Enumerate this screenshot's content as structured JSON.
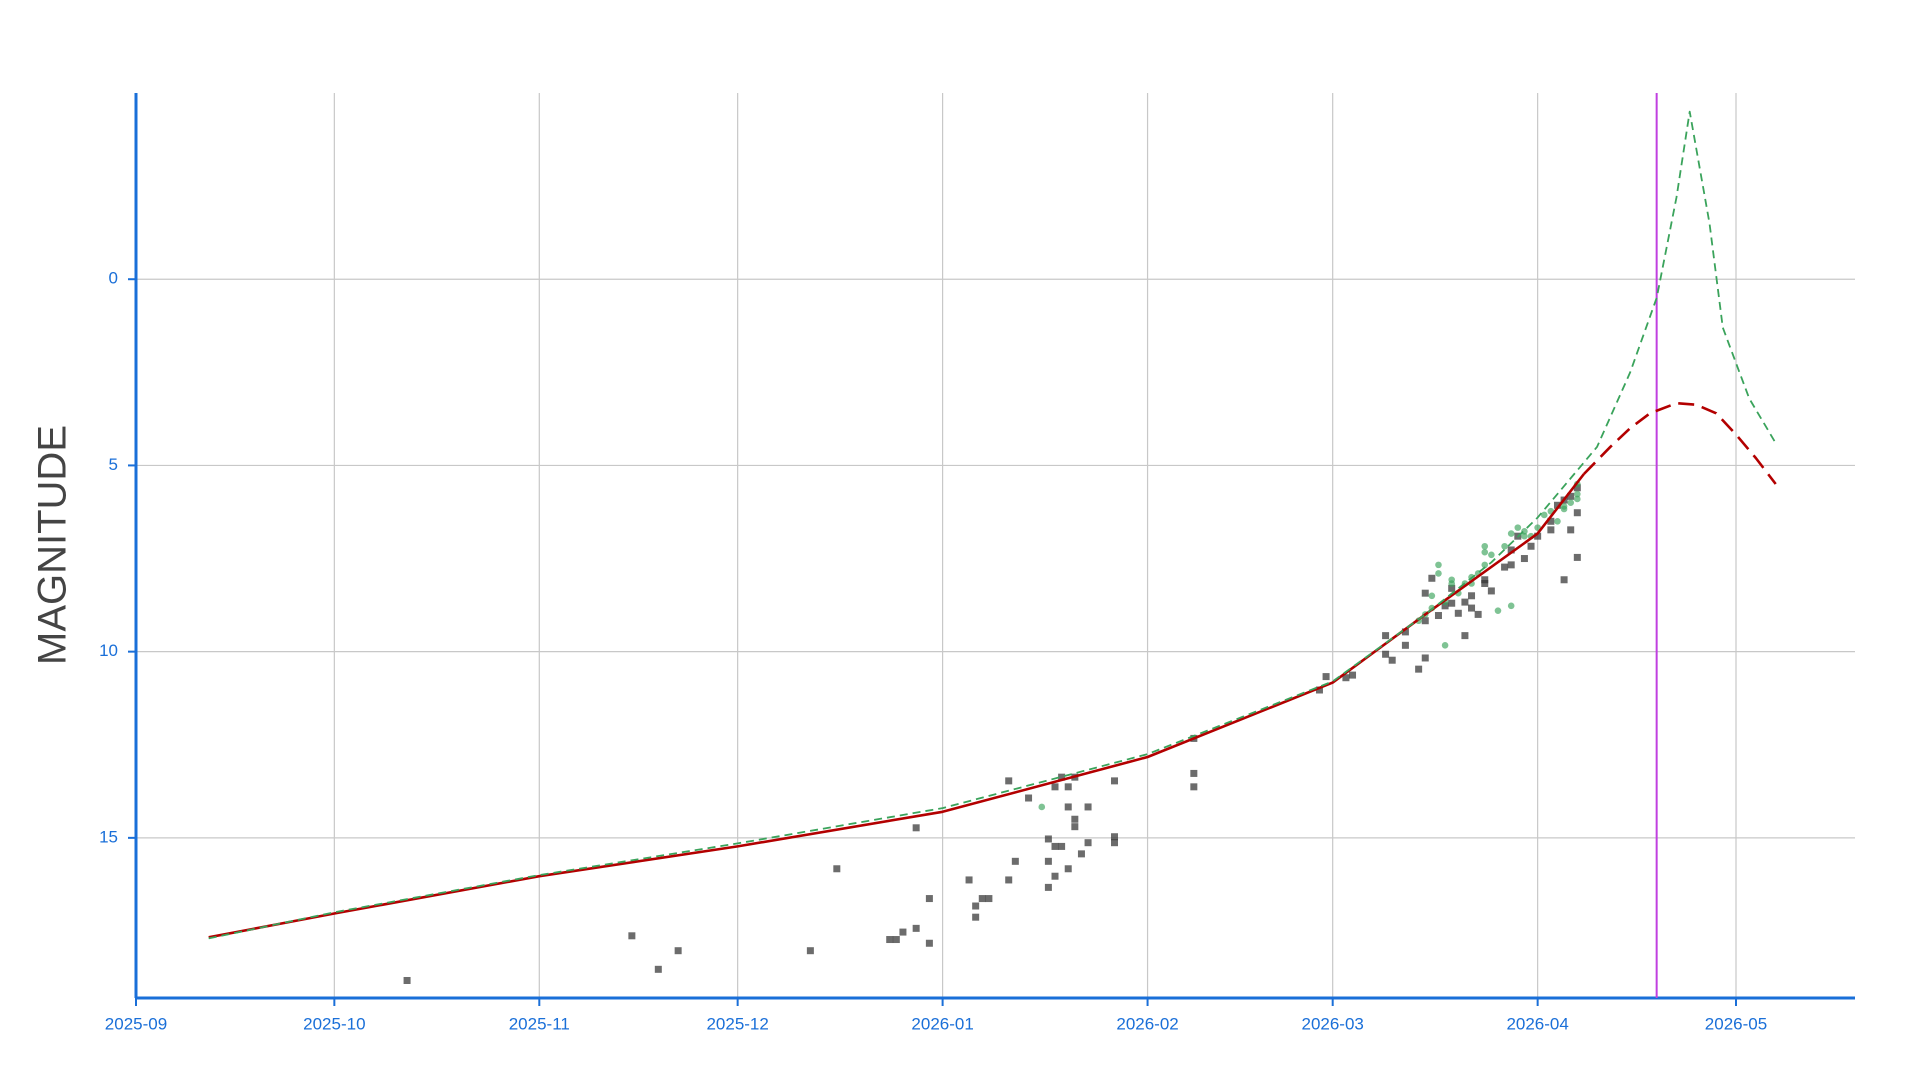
{
  "chart_data": {
    "type": "line",
    "y_label": "MAGNITUDE",
    "xlim": [
      "2025-09-01",
      "2026-05-19"
    ],
    "xticks": [
      "2025-09",
      "2025-10",
      "2025-11",
      "2025-12",
      "2026-01",
      "2026-02",
      "2026-03",
      "2026-04",
      "2026-05"
    ],
    "ylim": [
      19.3,
      -5
    ],
    "yticks": [
      0,
      5,
      10,
      15
    ],
    "grid": true,
    "vline": {
      "x": "2026-04-19",
      "color": "#c040e0"
    },
    "series": [
      {
        "style": "square",
        "color": "#333333",
        "x": [
          "2025-10-12",
          "2025-11-15",
          "2025-11-19",
          "2025-11-22",
          "2025-12-12",
          "2025-12-16",
          "2025-12-24",
          "2025-12-25",
          "2025-12-26",
          "2025-12-28",
          "2025-12-28",
          "2025-12-30",
          "2025-12-30",
          "2026-01-05",
          "2026-01-06",
          "2026-01-06",
          "2026-01-07",
          "2026-01-08",
          "2026-01-11",
          "2026-01-11",
          "2026-01-12",
          "2026-01-14",
          "2026-01-17",
          "2026-01-17",
          "2026-01-17",
          "2026-01-18",
          "2026-01-18",
          "2026-01-18",
          "2026-01-19",
          "2026-01-19",
          "2026-01-20",
          "2026-01-20",
          "2026-01-20",
          "2026-01-21",
          "2026-01-21",
          "2026-01-21",
          "2026-01-22",
          "2026-01-23",
          "2026-01-23",
          "2026-01-27",
          "2026-01-27",
          "2026-01-27",
          "2026-02-08",
          "2026-02-08",
          "2026-02-08",
          "2026-02-27",
          "2026-02-28",
          "2026-03-03",
          "2026-03-04",
          "2026-03-09",
          "2026-03-09",
          "2026-03-10",
          "2026-03-12",
          "2026-03-12",
          "2026-03-14",
          "2026-03-15",
          "2026-03-15",
          "2026-03-15",
          "2026-03-16",
          "2026-03-17",
          "2026-03-18",
          "2026-03-19",
          "2026-03-19",
          "2026-03-20",
          "2026-03-21",
          "2026-03-21",
          "2026-03-22",
          "2026-03-22",
          "2026-03-23",
          "2026-03-24",
          "2026-03-24",
          "2026-03-25",
          "2026-03-27",
          "2026-03-28",
          "2026-03-28",
          "2026-03-29",
          "2026-03-30",
          "2026-03-31",
          "2026-04-01",
          "2026-04-03",
          "2026-04-03",
          "2026-04-04",
          "2026-04-05",
          "2026-04-05",
          "2026-04-06",
          "2026-04-06",
          "2026-04-07",
          "2026-04-07",
          "2026-04-07"
        ],
        "values": [
          18.83,
          17.63,
          18.53,
          18.03,
          18.03,
          15.83,
          17.73,
          17.73,
          17.53,
          17.43,
          14.73,
          16.63,
          17.83,
          16.13,
          17.13,
          16.83,
          16.63,
          16.63,
          13.47,
          16.13,
          15.63,
          13.93,
          15.03,
          15.63,
          16.33,
          16.03,
          15.23,
          13.63,
          13.37,
          15.23,
          15.83,
          14.17,
          13.63,
          13.37,
          14.5,
          14.7,
          15.43,
          14.17,
          15.13,
          13.47,
          14.97,
          15.13,
          13.63,
          13.27,
          12.33,
          11.03,
          10.67,
          10.7,
          10.63,
          9.57,
          10.07,
          10.23,
          9.47,
          9.83,
          10.47,
          10.17,
          8.43,
          9.17,
          8.03,
          9.03,
          8.77,
          8.3,
          8.7,
          8.97,
          8.67,
          9.57,
          8.83,
          8.5,
          9.0,
          8.07,
          8.17,
          8.37,
          7.73,
          7.67,
          7.27,
          6.9,
          7.5,
          7.17,
          6.9,
          6.73,
          6.5,
          6.07,
          8.07,
          5.93,
          5.83,
          6.73,
          6.27,
          7.47,
          5.6
        ]
      },
      {
        "style": "circle",
        "color": "#3aa35b",
        "x": [
          "2026-01-16",
          "2026-03-14",
          "2026-03-15",
          "2026-03-16",
          "2026-03-16",
          "2026-03-17",
          "2026-03-17",
          "2026-03-18",
          "2026-03-18",
          "2026-03-19",
          "2026-03-19",
          "2026-03-20",
          "2026-03-21",
          "2026-03-22",
          "2026-03-22",
          "2026-03-23",
          "2026-03-24",
          "2026-03-24",
          "2026-03-24",
          "2026-03-25",
          "2026-03-26",
          "2026-03-27",
          "2026-03-28",
          "2026-03-28",
          "2026-03-29",
          "2026-03-30",
          "2026-03-30",
          "2026-03-31",
          "2026-04-01",
          "2026-04-02",
          "2026-04-03",
          "2026-04-04",
          "2026-04-05",
          "2026-04-05",
          "2026-04-06",
          "2026-04-07",
          "2026-04-07",
          "2026-04-07"
        ],
        "values": [
          14.17,
          9.17,
          9.0,
          8.83,
          8.5,
          7.67,
          7.9,
          8.67,
          9.83,
          8.07,
          8.17,
          8.43,
          8.17,
          8.0,
          8.17,
          7.9,
          7.17,
          7.33,
          7.67,
          7.4,
          8.9,
          7.17,
          8.77,
          6.83,
          6.67,
          6.9,
          6.77,
          6.9,
          6.67,
          6.33,
          6.23,
          6.5,
          6.1,
          6.17,
          6.0,
          5.9,
          5.77,
          5.5
        ]
      },
      {
        "style": "solid",
        "color": "#b30000",
        "x": [
          "2025-09-12",
          "2025-10-01",
          "2025-11-01",
          "2025-12-01",
          "2026-01-01",
          "2026-02-01",
          "2026-03-01",
          "2026-03-15",
          "2026-04-01",
          "2026-04-08"
        ],
        "values": [
          17.67,
          17.03,
          16.03,
          15.23,
          14.3,
          12.83,
          10.83,
          9.0,
          6.83,
          5.23
        ]
      },
      {
        "style": "dashed",
        "color": "#b30000",
        "x": [
          "2026-04-08",
          "2026-04-12",
          "2026-04-15",
          "2026-04-18",
          "2026-04-22",
          "2026-04-25",
          "2026-04-28",
          "2026-05-01",
          "2026-05-04",
          "2026-05-07"
        ],
        "values": [
          5.23,
          4.5,
          4.0,
          3.6,
          3.33,
          3.37,
          3.6,
          4.17,
          4.8,
          5.5
        ]
      },
      {
        "style": "dashed-thin",
        "color": "#3aa35b",
        "x": [
          "2025-09-12",
          "2025-10-01",
          "2025-11-01",
          "2025-12-01",
          "2026-01-01",
          "2026-02-01",
          "2026-03-01",
          "2026-03-15",
          "2026-03-25",
          "2026-04-01",
          "2026-04-10",
          "2026-04-15",
          "2026-04-19",
          "2026-04-22",
          "2026-04-24",
          "2026-04-27",
          "2026-04-29",
          "2026-05-03",
          "2026-05-07"
        ],
        "values": [
          17.7,
          17.0,
          16.0,
          15.15,
          14.2,
          12.75,
          10.8,
          9.0,
          7.6,
          6.4,
          4.5,
          2.5,
          0.5,
          -2.2,
          -4.5,
          -1.5,
          1.3,
          3.2,
          4.4
        ]
      }
    ]
  }
}
